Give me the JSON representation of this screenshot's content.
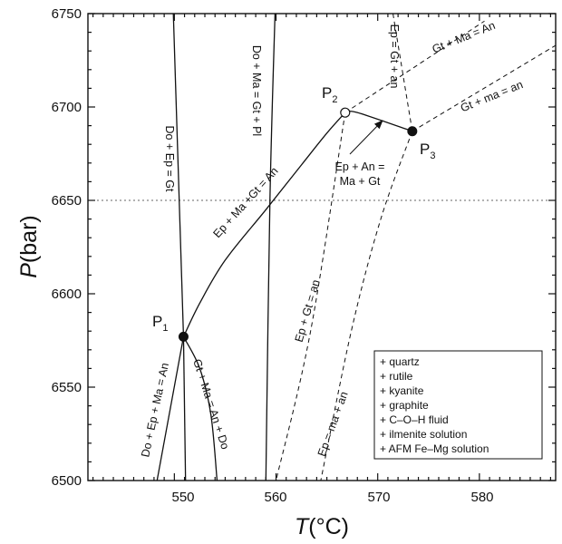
{
  "chart_data": {
    "type": "line",
    "title": "",
    "xlabel": {
      "italic": "T",
      "rest": "(°C)"
    },
    "ylabel": {
      "italic": "P",
      "rest": "(bar)"
    },
    "xlim": [
      541.5,
      587.5
    ],
    "ylim": [
      6500,
      6750
    ],
    "x_ticks": [
      550,
      560,
      570,
      580
    ],
    "y_ticks": [
      6500,
      6550,
      6600,
      6650,
      6700,
      6750
    ],
    "grid": false,
    "reference_lines": [
      {
        "axis": "y",
        "value": 6650,
        "style": "dotted"
      }
    ],
    "points": [
      {
        "name": "P",
        "sub": "1",
        "x": 550.9,
        "y": 6577,
        "marker": "filled"
      },
      {
        "name": "P",
        "sub": "2",
        "x": 566.8,
        "y": 6697,
        "marker": "open"
      },
      {
        "name": "P",
        "sub": "3",
        "x": 573.4,
        "y": 6687,
        "marker": "filled"
      }
    ],
    "series": [
      {
        "name": "Do + Ep = Gt",
        "style": "solid",
        "points": [
          [
            549.9,
            6750
          ],
          [
            550.9,
            6577
          ]
        ]
      },
      {
        "name": "Do + Ma = Gt + Pl",
        "style": "solid",
        "points": [
          [
            559.9,
            6750
          ],
          [
            559.4,
            6650
          ],
          [
            559.0,
            6500
          ]
        ]
      },
      {
        "name": "Ep + Ma +Gt = An",
        "style": "solid",
        "points": [
          [
            550.9,
            6577
          ],
          [
            552.5,
            6595
          ],
          [
            555.0,
            6618
          ],
          [
            559.0,
            6645
          ],
          [
            562.5,
            6669
          ],
          [
            565.0,
            6686
          ],
          [
            566.8,
            6697
          ]
        ]
      },
      {
        "name": "Do + Ep + Ma = An",
        "style": "solid",
        "points": [
          [
            550.9,
            6577
          ],
          [
            548.3,
            6500
          ]
        ]
      },
      {
        "name": "",
        "style": "solid",
        "points": [
          [
            550.9,
            6577
          ],
          [
            551.1,
            6500
          ]
        ]
      },
      {
        "name": "Gt + Ma = An + Do",
        "style": "solid",
        "points": [
          [
            550.9,
            6577
          ],
          [
            552.5,
            6560
          ],
          [
            553.6,
            6535
          ],
          [
            554.2,
            6500
          ]
        ]
      },
      {
        "name": "Ep + An = Ma + Gt",
        "style": "solid",
        "points": [
          [
            566.8,
            6697
          ],
          [
            568.0,
            6697
          ],
          [
            573.4,
            6687
          ]
        ]
      },
      {
        "name": "Gt + Ma = An",
        "style": "dashed",
        "points": [
          [
            566.8,
            6697
          ],
          [
            580.5,
            6746
          ]
        ]
      },
      {
        "name": "Ep = Gt + an",
        "style": "dashed",
        "points": [
          [
            571.5,
            6750
          ],
          [
            573.4,
            6687
          ]
        ]
      },
      {
        "name": "Gt + ma = an",
        "style": "dashed",
        "points": [
          [
            573.4,
            6687
          ],
          [
            587.5,
            6733
          ]
        ]
      },
      {
        "name": "Ep + Gt = an",
        "style": "dashed",
        "points": [
          [
            566.8,
            6697
          ],
          [
            563.4,
            6580
          ],
          [
            560.0,
            6500
          ]
        ]
      },
      {
        "name": "Ep = ma + an",
        "style": "dashed",
        "points": [
          [
            573.4,
            6687
          ],
          [
            570.3,
            6640
          ],
          [
            567.4,
            6580
          ],
          [
            564.4,
            6500
          ]
        ]
      }
    ],
    "labels": {
      "do_ep_gt": "Do + Ep = Gt",
      "do_ma_gt_pl": "Do + Ma = Gt + Pl",
      "ep_ma_gt_an": "Ep + Ma +Gt = An",
      "do_ep_ma_an": "Do + Ep + Ma = An",
      "gt_ma_an_do": "Gt + Ma = An + Do",
      "ep_gt_an_dashed": "Ep + Gt = an",
      "ep_ma_an": "Ep = ma + an",
      "ep_gt_an_upper": "Ep = Gt + an",
      "gt_ma_an_upper": "Gt + Ma = An",
      "gt_ma_an_lower": "Gt + ma = an",
      "ep_an_ma_gt_line1": "Ep + An =",
      "ep_an_ma_gt_line2": "Ma + Gt"
    },
    "legend": {
      "placement": "bottom-right",
      "items": [
        "+ quartz",
        "+ rutile",
        "+ kyanite",
        "+ graphite",
        "+ C–O–H fluid",
        "+ ilmenite solution",
        "+ AFM Fe–Mg solution"
      ]
    }
  }
}
